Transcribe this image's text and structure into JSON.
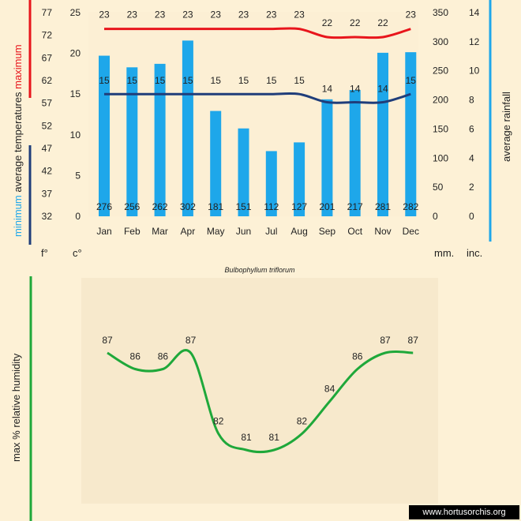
{
  "chart_data": [
    {
      "type": "bar",
      "categories": [
        "Jan",
        "Feb",
        "Mar",
        "Apr",
        "May",
        "Jun",
        "Jul",
        "Aug",
        "Sep",
        "Oct",
        "Nov",
        "Dec"
      ],
      "rainfall_mm": [
        276,
        256,
        262,
        302,
        181,
        151,
        112,
        127,
        201,
        217,
        281,
        282
      ],
      "series": [
        {
          "name": "maximum",
          "values": [
            23,
            23,
            23,
            23,
            23,
            23,
            23,
            23,
            22,
            22,
            22,
            23
          ],
          "color": "#e8151c"
        },
        {
          "name": "minimum",
          "values": [
            15,
            15,
            15,
            15,
            15,
            15,
            15,
            15,
            14,
            14,
            14,
            15
          ],
          "color": "#1f3d7a"
        }
      ],
      "bar_color": "#1ea7ea",
      "axes": {
        "left_f": {
          "label": "f°",
          "ticks": [
            "77",
            "72",
            "67",
            "62",
            "57",
            "52",
            "47",
            "42",
            "37",
            "32"
          ]
        },
        "left_c": {
          "label": "c°",
          "ticks": [
            "25",
            "20",
            "15",
            "10",
            "5",
            "0"
          ]
        },
        "right_mm": {
          "label": "mm.",
          "ticks": [
            "350",
            "300",
            "250",
            "200",
            "150",
            "100",
            "50",
            "0"
          ]
        },
        "right_inc": {
          "label": "inc.",
          "ticks": [
            "14",
            "12",
            "10",
            "8",
            "6",
            "4",
            "2",
            "0"
          ]
        }
      },
      "ylim_c": [
        0,
        25
      ],
      "ylim_mm": [
        0,
        350
      ],
      "ylabel_left": {
        "minimum": "minimum",
        "average": "average",
        "temperatures": "temperatures",
        "maximum": "maximum"
      },
      "ylabel_right": "average rainfall",
      "caption": "Bulbophyllum triflorum"
    },
    {
      "type": "line",
      "categories": [
        "Jan",
        "Feb",
        "Mar",
        "Apr",
        "May",
        "Jun",
        "Jul",
        "Aug",
        "Sep",
        "Oct",
        "Nov",
        "Dec"
      ],
      "values": [
        87,
        86,
        86,
        87,
        82,
        81,
        81,
        82,
        84,
        86,
        87,
        87
      ],
      "color": "#1fa83a",
      "ylabel": "max % relative humidity"
    }
  ],
  "watermark": "www.hortusorchis.org"
}
